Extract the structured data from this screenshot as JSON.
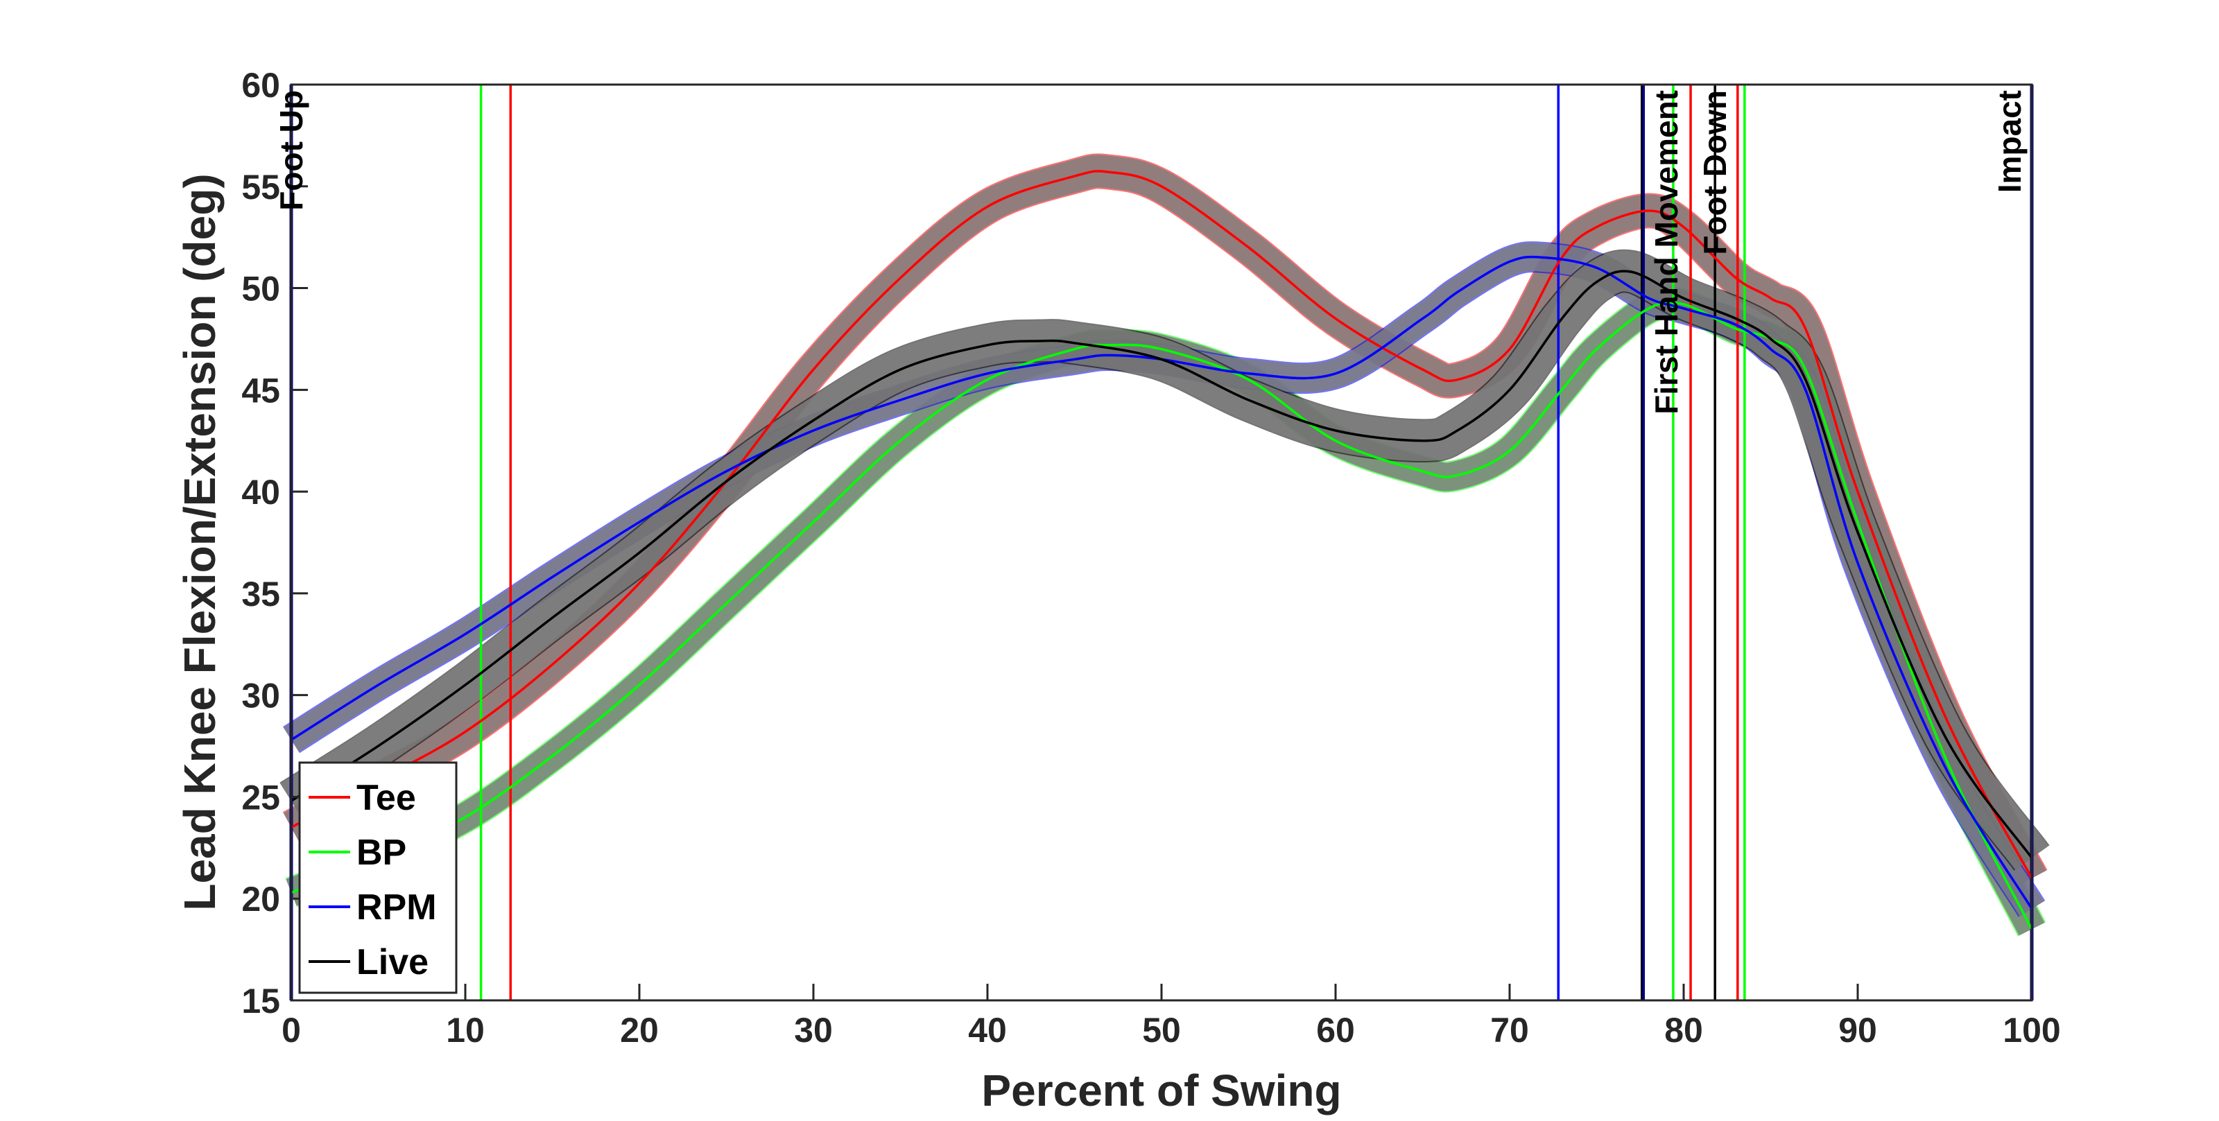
{
  "chart_data": {
    "type": "line",
    "title": "",
    "xlabel": "Percent of Swing",
    "ylabel": "Lead Knee Flexion/Extension (deg)",
    "xlim": [
      0,
      100
    ],
    "ylim": [
      15,
      60
    ],
    "xticks": [
      0,
      10,
      20,
      30,
      40,
      50,
      60,
      70,
      80,
      90,
      100
    ],
    "yticks": [
      15,
      20,
      25,
      30,
      35,
      40,
      45,
      50,
      55,
      60
    ],
    "xtick_labels": [
      "0",
      "10",
      "20",
      "30",
      "40",
      "50",
      "60",
      "70",
      "80",
      "90",
      "100"
    ],
    "ytick_labels": [
      "15",
      "20",
      "25",
      "30",
      "35",
      "40",
      "45",
      "50",
      "55",
      "60"
    ],
    "grid": false,
    "legend_position": "bottom-left",
    "band_color": "#7f7f7f",
    "series": [
      {
        "name": "Tee",
        "color": "#ff0000",
        "x": [
          0,
          5,
          10,
          15,
          20,
          25,
          30,
          35,
          40,
          45,
          47,
          50,
          55,
          60,
          65,
          67,
          70,
          73,
          75,
          78,
          80,
          83,
          85,
          87,
          90,
          95,
          100
        ],
        "y": [
          23.5,
          25.8,
          28.2,
          31.5,
          35.5,
          40.5,
          46.0,
          50.5,
          54.0,
          55.5,
          55.7,
          55.0,
          52.0,
          48.5,
          46.0,
          45.5,
          47.0,
          51.5,
          53.0,
          53.8,
          53.0,
          50.5,
          49.5,
          48.0,
          40.0,
          29.0,
          21.0
        ],
        "band_half_width": 0.8
      },
      {
        "name": "BP",
        "color": "#00ff00",
        "x": [
          0,
          5,
          10,
          15,
          20,
          25,
          30,
          35,
          40,
          45,
          47,
          50,
          55,
          60,
          65,
          67,
          70,
          73,
          75,
          78,
          80,
          83,
          85,
          87,
          90,
          95,
          100
        ],
        "y": [
          20.3,
          22.0,
          24.0,
          27.0,
          30.5,
          34.5,
          38.5,
          42.5,
          45.5,
          47.0,
          47.2,
          47.0,
          45.5,
          42.5,
          41.0,
          40.8,
          42.0,
          45.0,
          47.0,
          49.0,
          49.2,
          48.0,
          47.5,
          46.0,
          38.5,
          27.0,
          18.5
        ],
        "band_half_width": 0.7
      },
      {
        "name": "RPM",
        "color": "#0000ff",
        "x": [
          0,
          5,
          10,
          15,
          20,
          25,
          30,
          35,
          40,
          45,
          47,
          50,
          55,
          60,
          65,
          67,
          70,
          72,
          75,
          78,
          80,
          83,
          85,
          87,
          90,
          95,
          100
        ],
        "y": [
          27.8,
          30.5,
          33.0,
          35.8,
          38.5,
          41.0,
          43.0,
          44.5,
          45.8,
          46.5,
          46.7,
          46.5,
          45.8,
          45.8,
          48.5,
          49.8,
          51.3,
          51.5,
          51.0,
          49.5,
          49.0,
          48.2,
          47.0,
          45.0,
          36.5,
          26.5,
          19.5
        ],
        "band_half_width": 0.7
      },
      {
        "name": "Live",
        "color": "#000000",
        "x": [
          0,
          5,
          10,
          15,
          20,
          25,
          30,
          35,
          40,
          43,
          45,
          50,
          55,
          60,
          65,
          67,
          70,
          73,
          75,
          77,
          80,
          83,
          85,
          87,
          90,
          95,
          100
        ],
        "y": [
          24.8,
          27.5,
          30.5,
          33.8,
          37.0,
          40.5,
          43.5,
          46.0,
          47.2,
          47.4,
          47.3,
          46.5,
          44.5,
          43.0,
          42.5,
          43.0,
          45.0,
          48.5,
          50.3,
          50.8,
          49.5,
          48.5,
          47.5,
          45.5,
          38.0,
          28.0,
          22.0
        ],
        "band_half_width": 1.0
      }
    ],
    "event_lines": [
      {
        "x": 12.6,
        "color": "#ff0000"
      },
      {
        "x": 10.9,
        "color": "#00ff00"
      },
      {
        "x": 72.8,
        "color": "#0000ff"
      },
      {
        "x": 77.6,
        "color": "#000000"
      },
      {
        "x": 77.7,
        "color": "#00008b"
      },
      {
        "x": 79.4,
        "color": "#00ff00"
      },
      {
        "x": 80.4,
        "color": "#ff0000"
      },
      {
        "x": 81.8,
        "color": "#000000"
      },
      {
        "x": 83.1,
        "color": "#ff0000"
      },
      {
        "x": 83.5,
        "color": "#00ff00"
      },
      {
        "x": 0,
        "color": "#00008b"
      },
      {
        "x": 100,
        "color": "#00008b"
      }
    ],
    "event_labels": [
      {
        "text": "Foot Up",
        "x": 0
      },
      {
        "text": "First Hand Movement",
        "x": 79.0
      },
      {
        "text": "Foot Down",
        "x": 81.8
      },
      {
        "text": "Impact",
        "x": 100
      }
    ],
    "legend": [
      {
        "label": "Tee",
        "color": "#ff0000"
      },
      {
        "label": "BP",
        "color": "#00ff00"
      },
      {
        "label": "RPM",
        "color": "#0000ff"
      },
      {
        "label": "Live",
        "color": "#000000"
      }
    ]
  }
}
